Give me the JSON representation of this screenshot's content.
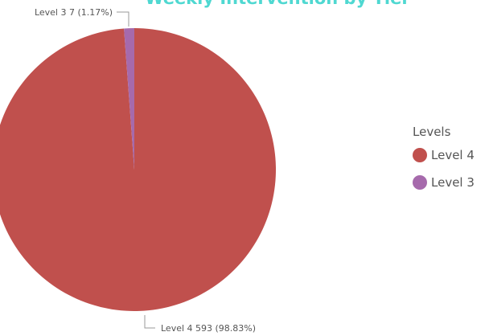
{
  "chart_data": {
    "type": "pie",
    "title": "Weekly Intervention by Tier",
    "legend_title": "Levels",
    "legend_position": "right",
    "slices": [
      {
        "name": "Level 4",
        "value": 593,
        "percent": "98.83%",
        "color": "#c0504d",
        "label": "Level 4 593 (98.83%)"
      },
      {
        "name": "Level 3",
        "value": 7,
        "percent": "1.17%",
        "color": "#a66aac",
        "label": "Level 3 7 (1.17%)"
      }
    ]
  }
}
